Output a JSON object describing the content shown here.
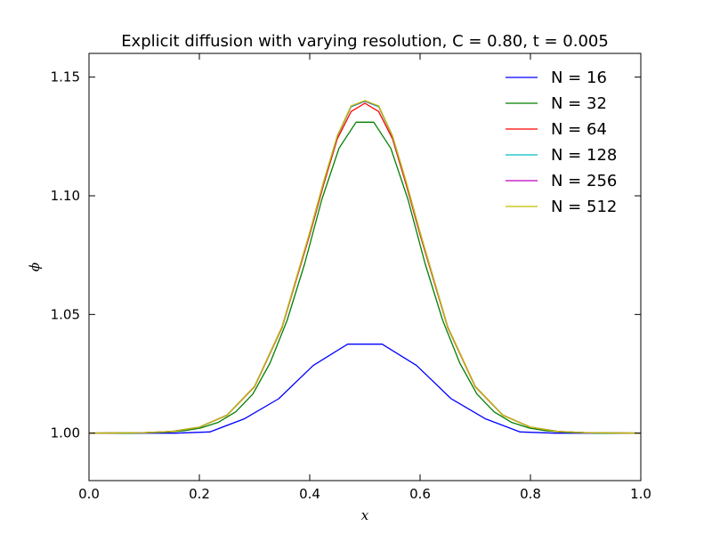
{
  "chart_data": {
    "type": "line",
    "title": "Explicit diffusion with varying resolution, C = 0.80, t = 0.005",
    "xlabel": "x",
    "ylabel": "ϕ",
    "xlim": [
      0.0,
      1.0
    ],
    "ylim": [
      0.98,
      1.16
    ],
    "xticks": [
      0.0,
      0.2,
      0.4,
      0.6,
      0.8,
      1.0
    ],
    "xtick_labels": [
      "0.0",
      "0.2",
      "0.4",
      "0.6",
      "0.8",
      "1.0"
    ],
    "yticks": [
      1.0,
      1.05,
      1.1,
      1.15
    ],
    "ytick_labels": [
      "1.00",
      "1.05",
      "1.10",
      "1.15"
    ],
    "grid": false,
    "legend_position": "top-right",
    "series": [
      {
        "name": "N = 16",
        "color": "#0000ff",
        "x": [
          0.0,
          0.03125,
          0.09375,
          0.15625,
          0.21875,
          0.28125,
          0.34375,
          0.40625,
          0.46875,
          0.53125,
          0.59375,
          0.65625,
          0.71875,
          0.78125,
          0.84375,
          0.90625,
          0.96875,
          1.0
        ],
        "y": [
          1.0,
          1.0,
          1.0,
          1.0,
          1.0005,
          1.006,
          1.0145,
          1.0285,
          1.0375,
          1.0375,
          1.0285,
          1.0145,
          1.006,
          1.0005,
          1.0,
          1.0,
          1.0,
          1.0
        ]
      },
      {
        "name": "N = 32",
        "color": "#008000",
        "x": [
          0.0,
          0.078,
          0.141,
          0.172,
          0.203,
          0.234,
          0.266,
          0.297,
          0.328,
          0.359,
          0.391,
          0.422,
          0.453,
          0.484,
          0.516,
          0.547,
          0.578,
          0.609,
          0.641,
          0.672,
          0.703,
          0.734,
          0.766,
          0.797,
          0.828,
          0.859,
          0.922,
          1.0
        ],
        "y": [
          1.0,
          1.0,
          1.0004,
          1.001,
          1.0022,
          1.0045,
          1.009,
          1.0165,
          1.0295,
          1.0475,
          1.0715,
          1.0985,
          1.12,
          1.131,
          1.131,
          1.12,
          1.0985,
          1.0715,
          1.0475,
          1.0295,
          1.0165,
          1.009,
          1.0045,
          1.0022,
          1.001,
          1.0004,
          1.0,
          1.0
        ]
      },
      {
        "name": "N = 64",
        "color": "#ff0000",
        "x": [
          0.0,
          0.1,
          0.15,
          0.2,
          0.25,
          0.3,
          0.35,
          0.4,
          0.425,
          0.45,
          0.475,
          0.5,
          0.525,
          0.55,
          0.575,
          0.6,
          0.65,
          0.7,
          0.75,
          0.8,
          0.85,
          0.9,
          1.0
        ],
        "y": [
          1.0,
          1.0002,
          1.0007,
          1.0025,
          1.0075,
          1.0195,
          1.0445,
          1.0835,
          1.1045,
          1.124,
          1.1355,
          1.139,
          1.1355,
          1.124,
          1.1045,
          1.0835,
          1.0445,
          1.0195,
          1.0075,
          1.0025,
          1.0007,
          1.0002,
          1.0
        ]
      },
      {
        "name": "N = 128",
        "color": "#00bfbf",
        "x": [
          0.0,
          0.1,
          0.15,
          0.2,
          0.25,
          0.3,
          0.35,
          0.4,
          0.425,
          0.45,
          0.475,
          0.5,
          0.525,
          0.55,
          0.575,
          0.6,
          0.65,
          0.7,
          0.75,
          0.8,
          0.85,
          0.9,
          1.0
        ],
        "y": [
          1.0,
          1.0002,
          1.0007,
          1.0025,
          1.0076,
          1.0197,
          1.0448,
          1.0843,
          1.1055,
          1.125,
          1.1375,
          1.1398,
          1.1375,
          1.125,
          1.1055,
          1.0843,
          1.0448,
          1.0197,
          1.0076,
          1.0025,
          1.0007,
          1.0002,
          1.0
        ]
      },
      {
        "name": "N = 256",
        "color": "#bf00bf",
        "x": [
          0.0,
          0.1,
          0.15,
          0.2,
          0.25,
          0.3,
          0.35,
          0.4,
          0.425,
          0.45,
          0.475,
          0.5,
          0.525,
          0.55,
          0.575,
          0.6,
          0.65,
          0.7,
          0.75,
          0.8,
          0.85,
          0.9,
          1.0
        ],
        "y": [
          1.0,
          1.0002,
          1.0007,
          1.0025,
          1.0076,
          1.0197,
          1.0449,
          1.0845,
          1.1057,
          1.1252,
          1.1378,
          1.14,
          1.1378,
          1.1252,
          1.1057,
          1.0845,
          1.0449,
          1.0197,
          1.0076,
          1.0025,
          1.0007,
          1.0002,
          1.0
        ]
      },
      {
        "name": "N = 512",
        "color": "#bfbf00",
        "x": [
          0.0,
          0.1,
          0.15,
          0.2,
          0.25,
          0.3,
          0.35,
          0.4,
          0.425,
          0.45,
          0.475,
          0.5,
          0.525,
          0.55,
          0.575,
          0.6,
          0.65,
          0.7,
          0.75,
          0.8,
          0.85,
          0.9,
          1.0
        ],
        "y": [
          1.0,
          1.0002,
          1.0007,
          1.0025,
          1.0076,
          1.0197,
          1.0449,
          1.0846,
          1.1058,
          1.1253,
          1.1379,
          1.1401,
          1.1379,
          1.1253,
          1.1058,
          1.0846,
          1.0449,
          1.0197,
          1.0076,
          1.0025,
          1.0007,
          1.0002,
          1.0
        ]
      }
    ]
  }
}
